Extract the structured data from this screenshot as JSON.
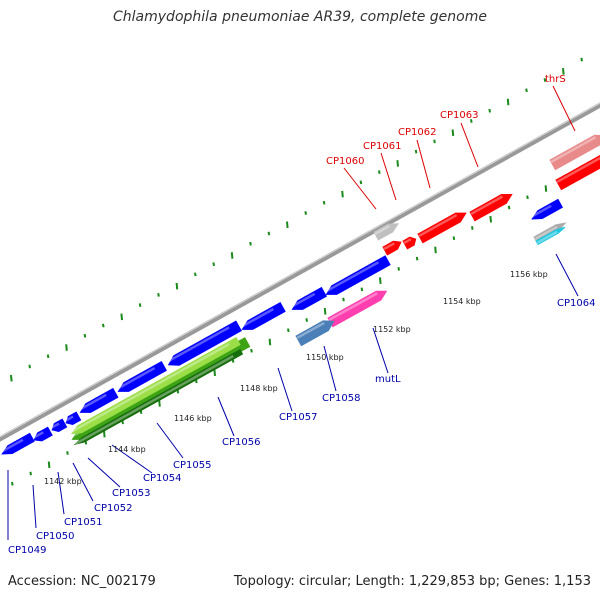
{
  "title": "Chlamydophila pneumoniae AR39, complete genome",
  "accession": "Accession: NC_002179",
  "stats": "Topology: circular; Length: 1,229,853 bp; Genes: 1,153",
  "colors": {
    "backbone": "#8c8c8c",
    "forward_gene": "#ff0000",
    "reverse_gene": "#0000ff",
    "tick": "#1a8a1a",
    "reverse_label": "#0000aa",
    "forward_label": "#dd0000"
  },
  "tick_labels": [
    "1142 kbp",
    "1144 kbp",
    "1146 kbp",
    "1148 kbp",
    "1150 kbp",
    "1152 kbp",
    "1154 kbp",
    "1156 kbp"
  ],
  "forward_labels": [
    "CP1060",
    "CP1061",
    "CP1062",
    "CP1063",
    "thrS"
  ],
  "reverse_labels": [
    "CP1049",
    "CP1050",
    "CP1051",
    "CP1052",
    "CP1053",
    "CP1054",
    "CP1055",
    "CP1056",
    "CP1057",
    "CP1058",
    "mutL",
    "CP1064"
  ]
}
